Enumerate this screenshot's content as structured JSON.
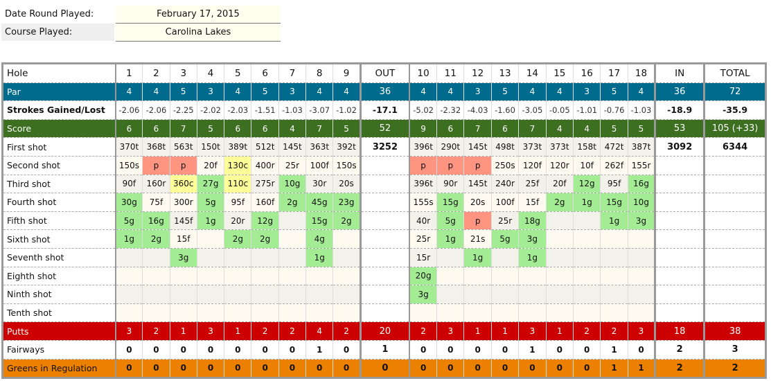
{
  "info": {
    "date_label": "Date Round Played:",
    "date_value": "February 17, 2015",
    "course_label": "Course Played:",
    "course_value": "Carolina Lakes"
  },
  "colors": {
    "par": "#006b8c",
    "score": "#3c6f1f",
    "putts": "#cc0000",
    "gir": "#ec8000",
    "green_cell": "#a3ec93",
    "penalty_cell": "#ff9581",
    "chip_cell": "#ffff99"
  },
  "scorecard": {
    "headers": {
      "hole": "Hole",
      "holes": [
        "1",
        "2",
        "3",
        "4",
        "5",
        "6",
        "7",
        "8",
        "9",
        "10",
        "11",
        "12",
        "13",
        "14",
        "15",
        "16",
        "17",
        "18"
      ],
      "out": "OUT",
      "in": "IN",
      "total": "TOTAL"
    },
    "par": {
      "label": "Par",
      "values": [
        "4",
        "4",
        "5",
        "3",
        "4",
        "5",
        "3",
        "4",
        "4",
        "4",
        "4",
        "3",
        "5",
        "4",
        "4",
        "3",
        "5",
        "4"
      ],
      "out": "36",
      "in": "36",
      "total": "72"
    },
    "strokes_gained": {
      "label": "Strokes Gained/Lost",
      "values": [
        "-2.06",
        "-2.06",
        "-2.25",
        "-2.02",
        "-2.03",
        "-1.51",
        "-1.03",
        "-3.07",
        "-1.02",
        "-5.02",
        "-2.32",
        "-4.03",
        "-1.60",
        "-3.05",
        "-0.05",
        "-1.01",
        "-0.76",
        "-1.03"
      ],
      "out": "-17.1",
      "in": "-18.9",
      "total": "-35.9"
    },
    "score": {
      "label": "Score",
      "values": [
        "6",
        "6",
        "7",
        "5",
        "6",
        "6",
        "4",
        "7",
        "5",
        "9",
        "6",
        "7",
        "6",
        "7",
        "4",
        "4",
        "5",
        "5"
      ],
      "out": "52",
      "in": "53",
      "total": "105 (+33)"
    },
    "shot_rows": [
      {
        "label": "First shot",
        "out": "3252",
        "in": "3092",
        "total": "6344"
      },
      {
        "label": "Second shot"
      },
      {
        "label": "Third shot"
      },
      {
        "label": "Fourth shot"
      },
      {
        "label": "Fifth shot"
      },
      {
        "label": "Sixth shot"
      },
      {
        "label": "Seventh shot"
      },
      {
        "label": "Eighth shot"
      },
      {
        "label": "Ninth shot"
      },
      {
        "label": "Tenth shot"
      }
    ],
    "shots": [
      [
        "370t",
        "150s",
        "90f",
        "30g",
        "5g",
        "1g"
      ],
      [
        "368t",
        "p",
        "160r",
        "75f",
        "16g",
        "2g"
      ],
      [
        "563t",
        "p",
        "360c",
        "300r",
        "145f",
        "15f",
        "3g"
      ],
      [
        "150t",
        "20f",
        "27g",
        "5g",
        "1g"
      ],
      [
        "389t",
        "130c",
        "110c",
        "95f",
        "20r",
        "2g"
      ],
      [
        "512t",
        "400r",
        "275r",
        "160f",
        "12g",
        "2g"
      ],
      [
        "145t",
        "25r",
        "10g",
        "2g"
      ],
      [
        "363t",
        "100f",
        "30r",
        "45g",
        "15g",
        "4g",
        "1g"
      ],
      [
        "392t",
        "150s",
        "20s",
        "23g",
        "2g"
      ],
      [
        "396t",
        "p",
        "396t",
        "155s",
        "40r",
        "25r",
        "15r",
        "20g",
        "3g"
      ],
      [
        "290t",
        "p",
        "90r",
        "15g",
        "5g",
        "1g"
      ],
      [
        "145t",
        "p",
        "145t",
        "20s",
        "p",
        "21s",
        "1g"
      ],
      [
        "498t",
        "250s",
        "240r",
        "100f",
        "25r",
        "5g"
      ],
      [
        "373t",
        "120f",
        "25f",
        "15f",
        "18g",
        "3g",
        "1g"
      ],
      [
        "373t",
        "120r",
        "20f",
        "2g"
      ],
      [
        "158t",
        "10f",
        "12g",
        "1g"
      ],
      [
        "472t",
        "262f",
        "95f",
        "15g",
        "1g"
      ],
      [
        "387t",
        "155r",
        "16g",
        "10g",
        "3g"
      ]
    ],
    "putts": {
      "label": "Putts",
      "values": [
        "3",
        "2",
        "1",
        "3",
        "1",
        "2",
        "2",
        "4",
        "2",
        "2",
        "3",
        "1",
        "1",
        "3",
        "1",
        "2",
        "2",
        "3"
      ],
      "out": "20",
      "in": "18",
      "total": "38"
    },
    "fairways": {
      "label": "Fairways",
      "values": [
        "0",
        "0",
        "0",
        "0",
        "0",
        "0",
        "0",
        "1",
        "0",
        "0",
        "0",
        "0",
        "0",
        "1",
        "0",
        "0",
        "1",
        "0"
      ],
      "out": "1",
      "in": "2",
      "total": "3"
    },
    "gir": {
      "label": "Greens in Regulation",
      "values": [
        "0",
        "0",
        "0",
        "0",
        "0",
        "0",
        "0",
        "0",
        "0",
        "0",
        "0",
        "0",
        "0",
        "0",
        "0",
        "0",
        "1",
        "1"
      ],
      "out": "0",
      "in": "2",
      "total": "2"
    }
  }
}
